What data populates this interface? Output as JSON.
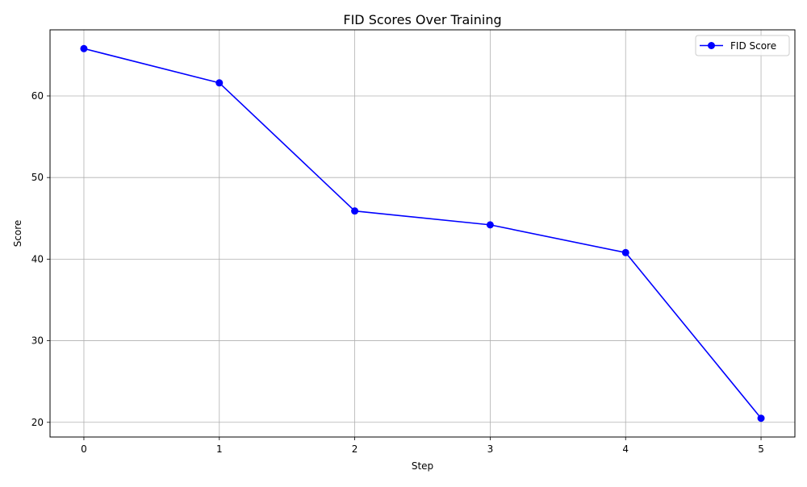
{
  "chart_data": {
    "type": "line",
    "title": "FID Scores Over Training",
    "xlabel": "Step",
    "ylabel": "Score",
    "x": [
      0,
      1,
      2,
      3,
      4,
      5
    ],
    "xlim": [
      -0.25,
      5.25
    ],
    "ylim": [
      18.2,
      68.1
    ],
    "xticks": [
      0,
      1,
      2,
      3,
      4,
      5
    ],
    "yticks": [
      20,
      30,
      40,
      50,
      60
    ],
    "grid": true,
    "legend_position": "top-right",
    "series": [
      {
        "name": "FID Score",
        "color": "#0000ff",
        "marker": "circle",
        "values": [
          65.8,
          61.6,
          45.9,
          44.2,
          40.8,
          20.5
        ]
      }
    ]
  },
  "colors": {
    "grid": "#b0b0b0",
    "axis": "#000000",
    "background": "#ffffff"
  }
}
